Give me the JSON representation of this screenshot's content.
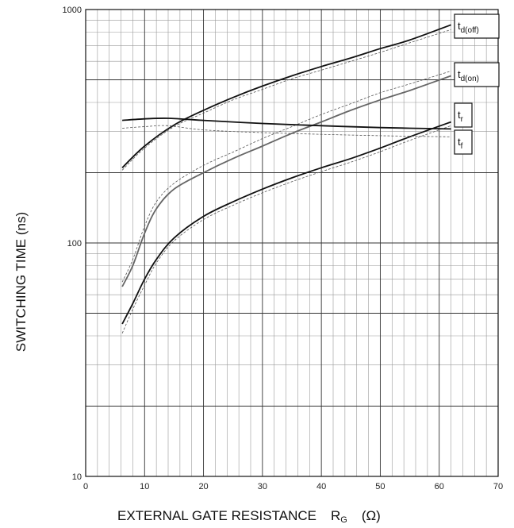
{
  "chart_data": {
    "type": "line",
    "xlabel": "EXTERNAL GATE RESISTANCE",
    "xlabel_symbol": "R",
    "xlabel_symbol_sub": "G",
    "xlabel_unit": "(Ω)",
    "ylabel": "SWITCHING TIME    (ns)",
    "xlim": [
      0,
      70
    ],
    "ylim": [
      10,
      1000
    ],
    "yscale": "log",
    "grid": true,
    "x_ticks": [
      "0",
      "10",
      "20",
      "30",
      "40",
      "50",
      "60",
      "70"
    ],
    "y_ticks": [
      "10",
      "100",
      "1000"
    ],
    "series": [
      {
        "name": "t",
        "sub": "d(off)",
        "color": "#111111",
        "points": [
          [
            6.2,
            210
          ],
          [
            10,
            260
          ],
          [
            15,
            320
          ],
          [
            20,
            370
          ],
          [
            25,
            420
          ],
          [
            30,
            470
          ],
          [
            35,
            520
          ],
          [
            40,
            570
          ],
          [
            45,
            620
          ],
          [
            50,
            680
          ],
          [
            55,
            740
          ],
          [
            62,
            860
          ]
        ],
        "dashed": [
          [
            6.2,
            205
          ],
          [
            10,
            255
          ],
          [
            15,
            315
          ],
          [
            20,
            360
          ],
          [
            25,
            410
          ],
          [
            30,
            455
          ],
          [
            35,
            505
          ],
          [
            40,
            550
          ],
          [
            45,
            600
          ],
          [
            50,
            655
          ],
          [
            55,
            720
          ],
          [
            62,
            820
          ]
        ]
      },
      {
        "name": "t",
        "sub": "d(on)",
        "color": "#666666",
        "points": [
          [
            6.2,
            65
          ],
          [
            8,
            80
          ],
          [
            10,
            110
          ],
          [
            12,
            140
          ],
          [
            15,
            170
          ],
          [
            20,
            200
          ],
          [
            25,
            230
          ],
          [
            30,
            260
          ],
          [
            35,
            295
          ],
          [
            40,
            330
          ],
          [
            45,
            370
          ],
          [
            50,
            410
          ],
          [
            55,
            450
          ],
          [
            62,
            520
          ]
        ],
        "dashed": [
          [
            6.2,
            68
          ],
          [
            8,
            85
          ],
          [
            10,
            118
          ],
          [
            12,
            150
          ],
          [
            15,
            180
          ],
          [
            20,
            215
          ],
          [
            25,
            245
          ],
          [
            30,
            280
          ],
          [
            35,
            315
          ],
          [
            40,
            355
          ],
          [
            45,
            395
          ],
          [
            50,
            440
          ],
          [
            55,
            480
          ],
          [
            62,
            545
          ]
        ]
      },
      {
        "name": "t",
        "sub": "r",
        "color": "#111111",
        "points": [
          [
            6.2,
            45
          ],
          [
            8,
            55
          ],
          [
            10,
            70
          ],
          [
            12,
            85
          ],
          [
            15,
            105
          ],
          [
            20,
            130
          ],
          [
            25,
            150
          ],
          [
            30,
            170
          ],
          [
            35,
            190
          ],
          [
            40,
            210
          ],
          [
            45,
            230
          ],
          [
            50,
            255
          ],
          [
            55,
            285
          ],
          [
            62,
            330
          ]
        ],
        "dashed": [
          [
            6.2,
            41
          ],
          [
            8,
            52
          ],
          [
            10,
            66
          ],
          [
            12,
            82
          ],
          [
            15,
            102
          ],
          [
            20,
            126
          ],
          [
            25,
            145
          ],
          [
            30,
            164
          ],
          [
            35,
            183
          ],
          [
            40,
            202
          ],
          [
            45,
            222
          ],
          [
            50,
            246
          ],
          [
            55,
            275
          ],
          [
            62,
            318
          ]
        ]
      },
      {
        "name": "t",
        "sub": "f",
        "color": "#111111",
        "points": [
          [
            6.2,
            335
          ],
          [
            10,
            340
          ],
          [
            14,
            342
          ],
          [
            20,
            335
          ],
          [
            30,
            325
          ],
          [
            40,
            318
          ],
          [
            50,
            312
          ],
          [
            62,
            308
          ]
        ],
        "dashed": [
          [
            6.2,
            310
          ],
          [
            10,
            315
          ],
          [
            14,
            318
          ],
          [
            20,
            305
          ],
          [
            30,
            297
          ],
          [
            40,
            292
          ],
          [
            50,
            288
          ],
          [
            62,
            285
          ]
        ]
      }
    ]
  }
}
